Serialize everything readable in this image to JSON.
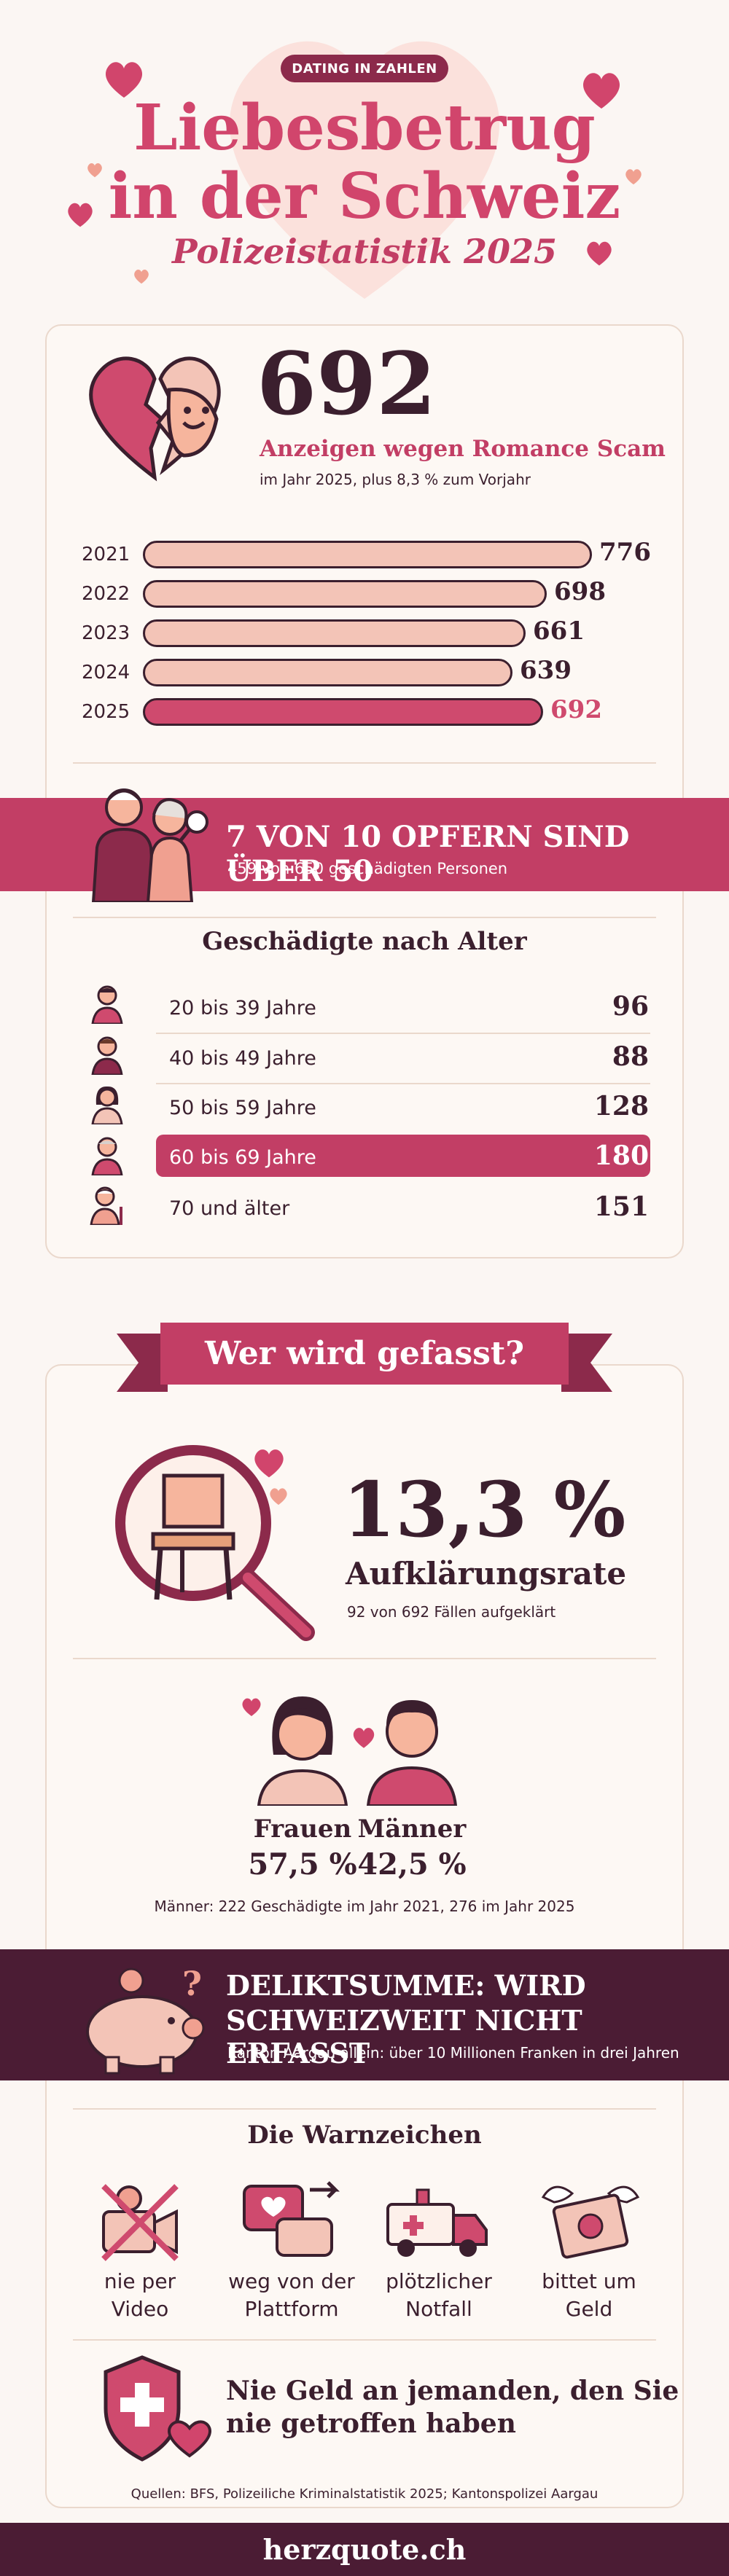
{
  "header": {
    "badge": "DATING IN ZAHLEN",
    "title_line1": "Liebesbetrug",
    "title_line2": "in der Schweiz",
    "subtitle": "Polizeistatistik 2025"
  },
  "reports": {
    "number": "692",
    "label": "Anzeigen wegen Romance Scam",
    "note": "im Jahr 2025, plus 8,3 % zum Vorjahr"
  },
  "chart_data": {
    "type": "bar",
    "categories": [
      "2021",
      "2022",
      "2023",
      "2024",
      "2025"
    ],
    "values": [
      776,
      698,
      661,
      639,
      692
    ],
    "labels": [
      "776",
      "698",
      "661",
      "639",
      "692"
    ],
    "highlight": "2025",
    "colors": {
      "default": "#f3c4b7",
      "highlight": "#cf4a6e"
    }
  },
  "victims_banner": {
    "headline": "7 VON 10 OPFERN SIND ÜBER 50",
    "sub": "459 von 650 geschädigten Personen"
  },
  "age": {
    "title": "Geschädigte nach Alter",
    "rows": [
      {
        "label": "20 bis 39 Jahre",
        "value": "96",
        "highlight": false
      },
      {
        "label": "40 bis 49 Jahre",
        "value": "88",
        "highlight": false
      },
      {
        "label": "50 bis 59 Jahre",
        "value": "128",
        "highlight": false
      },
      {
        "label": "60 bis 69 Jahre",
        "value": "180",
        "highlight": true
      },
      {
        "label": "70 und älter",
        "value": "151",
        "highlight": false
      }
    ]
  },
  "caught": {
    "ribbon": "Wer wird gefasst?",
    "rate": "13,3 %",
    "rate_label": "Aufklärungsrate",
    "rate_note": "92 von 692 Fällen aufgeklärt",
    "women_label": "Frauen",
    "women_value": "57,5 %",
    "men_label": "Männer",
    "men_value": "42,5 %",
    "gender_note": "Männer: 222 Geschädigte im Jahr 2021, 276 im Jahr 2025"
  },
  "sum_banner": {
    "line1": "DELIKTSUMME: WIRD",
    "line2": "SCHWEIZWEIT NICHT ERFASST",
    "sub": "Kanton Aargau allein: über 10 Millionen Franken in drei Jahren"
  },
  "warnings": {
    "title": "Die Warnzeichen",
    "items": [
      {
        "l1": "nie per",
        "l2": "Video",
        "icon": "no-video-icon"
      },
      {
        "l1": "weg von der",
        "l2": "Plattform",
        "icon": "chat-redirect-icon"
      },
      {
        "l1": "plötzlicher",
        "l2": "Notfall",
        "icon": "ambulance-icon"
      },
      {
        "l1": "bittet um",
        "l2": "Geld",
        "icon": "flying-money-icon"
      }
    ],
    "advice_l1": "Nie Geld an jemanden, den Sie",
    "advice_l2": "nie getroffen haben"
  },
  "sources": "Quellen: BFS, Polizeiliche Kriminalstatistik 2025; Kantonspolizei Aargau",
  "footer": "herzquote.ch",
  "colors": {
    "accent": "#c23e65",
    "dark": "#4b1c34",
    "pink": "#d1456c",
    "text": "#3b1f2e"
  }
}
